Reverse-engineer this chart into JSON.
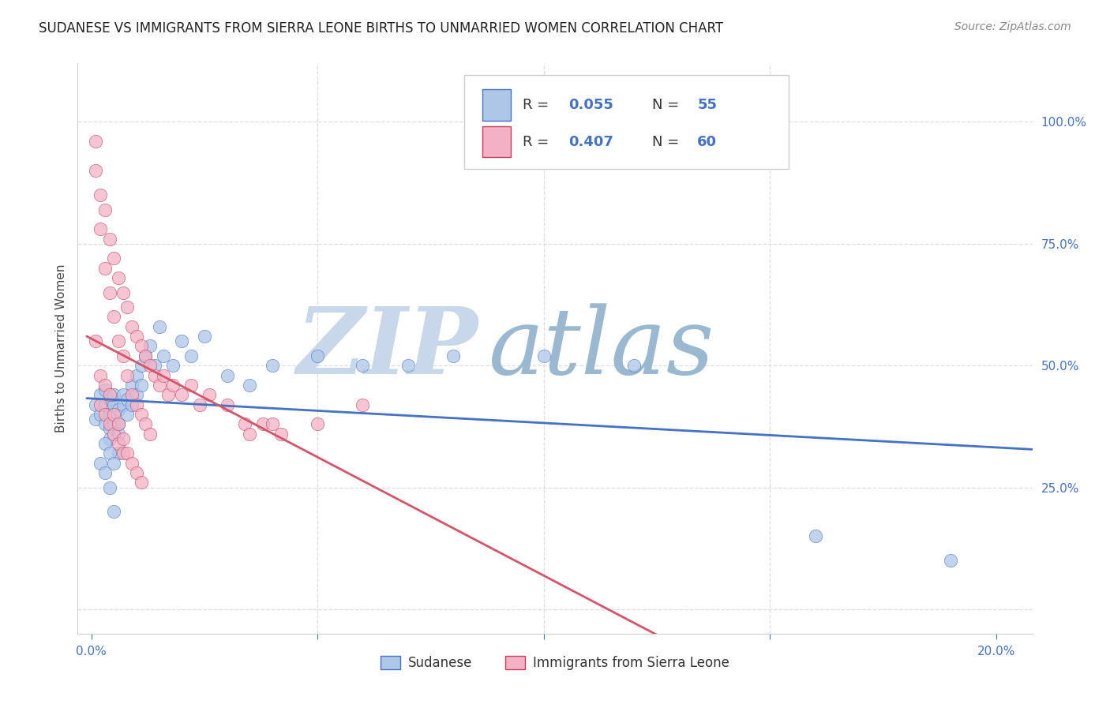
{
  "title": "SUDANESE VS IMMIGRANTS FROM SIERRA LEONE BIRTHS TO UNMARRIED WOMEN CORRELATION CHART",
  "source": "Source: ZipAtlas.com",
  "ylabel": "Births to Unmarried Women",
  "xlim": [
    -0.003,
    0.208
  ],
  "ylim": [
    -0.05,
    1.12
  ],
  "x_ticks": [
    0.0,
    0.05,
    0.1,
    0.15,
    0.2
  ],
  "x_tick_labels": [
    "0.0%",
    "",
    "",
    "",
    "20.0%"
  ],
  "y_ticks": [
    0.0,
    0.25,
    0.5,
    0.75,
    1.0
  ],
  "y_tick_labels": [
    "",
    "25.0%",
    "50.0%",
    "75.0%",
    "100.0%"
  ],
  "legend_labels": [
    "Sudanese",
    "Immigrants from Sierra Leone"
  ],
  "sudanese_color": "#aec6e8",
  "sudanese_edge": "#4472c4",
  "sierra_leone_color": "#f4b0c4",
  "sierra_leone_edge": "#c0405a",
  "trend_blue": "#4472c4",
  "trend_pink": "#d4546a",
  "watermark_zip": "ZIP",
  "watermark_atlas": "atlas",
  "watermark_color_zip": "#c8d8ea",
  "watermark_color_atlas": "#9ab8d0",
  "r_blue": "0.055",
  "n_blue": "55",
  "r_pink": "0.407",
  "n_pink": "60",
  "sudanese_x": [
    0.001,
    0.001,
    0.002,
    0.002,
    0.003,
    0.003,
    0.003,
    0.004,
    0.004,
    0.004,
    0.004,
    0.005,
    0.005,
    0.005,
    0.006,
    0.006,
    0.006,
    0.007,
    0.007,
    0.008,
    0.008,
    0.009,
    0.009,
    0.01,
    0.01,
    0.011,
    0.011,
    0.012,
    0.013,
    0.014,
    0.015,
    0.016,
    0.018,
    0.02,
    0.022,
    0.025,
    0.03,
    0.035,
    0.04,
    0.05,
    0.06,
    0.07,
    0.08,
    0.1,
    0.12,
    0.16,
    0.19,
    0.002,
    0.003,
    0.004,
    0.005,
    0.006,
    0.003,
    0.004,
    0.005
  ],
  "sudanese_y": [
    0.42,
    0.39,
    0.44,
    0.4,
    0.45,
    0.42,
    0.38,
    0.43,
    0.4,
    0.37,
    0.35,
    0.42,
    0.38,
    0.44,
    0.41,
    0.38,
    0.36,
    0.42,
    0.44,
    0.43,
    0.4,
    0.46,
    0.42,
    0.48,
    0.44,
    0.5,
    0.46,
    0.52,
    0.54,
    0.5,
    0.58,
    0.52,
    0.5,
    0.55,
    0.52,
    0.56,
    0.48,
    0.46,
    0.5,
    0.52,
    0.5,
    0.5,
    0.52,
    0.52,
    0.5,
    0.15,
    0.1,
    0.3,
    0.28,
    0.25,
    0.2,
    0.32,
    0.34,
    0.32,
    0.3
  ],
  "sierra_leone_x": [
    0.001,
    0.001,
    0.001,
    0.002,
    0.002,
    0.002,
    0.003,
    0.003,
    0.003,
    0.004,
    0.004,
    0.004,
    0.005,
    0.005,
    0.005,
    0.006,
    0.006,
    0.006,
    0.007,
    0.007,
    0.007,
    0.008,
    0.008,
    0.009,
    0.009,
    0.01,
    0.01,
    0.011,
    0.011,
    0.012,
    0.012,
    0.013,
    0.013,
    0.014,
    0.015,
    0.016,
    0.017,
    0.018,
    0.02,
    0.022,
    0.024,
    0.026,
    0.03,
    0.034,
    0.038,
    0.042,
    0.05,
    0.06,
    0.002,
    0.003,
    0.004,
    0.005,
    0.006,
    0.007,
    0.008,
    0.009,
    0.01,
    0.011,
    0.04,
    0.035
  ],
  "sierra_leone_y": [
    0.96,
    0.9,
    0.55,
    0.85,
    0.78,
    0.42,
    0.82,
    0.7,
    0.4,
    0.76,
    0.65,
    0.38,
    0.72,
    0.6,
    0.36,
    0.68,
    0.55,
    0.34,
    0.65,
    0.52,
    0.32,
    0.62,
    0.48,
    0.58,
    0.44,
    0.56,
    0.42,
    0.54,
    0.4,
    0.52,
    0.38,
    0.5,
    0.36,
    0.48,
    0.46,
    0.48,
    0.44,
    0.46,
    0.44,
    0.46,
    0.42,
    0.44,
    0.42,
    0.38,
    0.38,
    0.36,
    0.38,
    0.42,
    0.48,
    0.46,
    0.44,
    0.4,
    0.38,
    0.35,
    0.32,
    0.3,
    0.28,
    0.26,
    0.38,
    0.36
  ]
}
